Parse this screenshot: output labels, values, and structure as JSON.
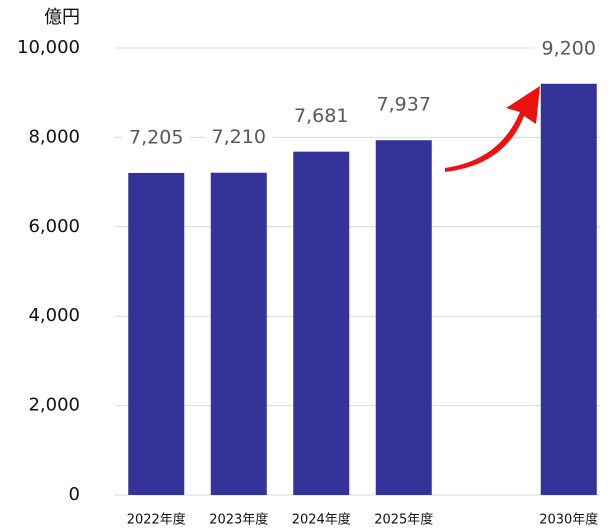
{
  "chart_data": {
    "type": "bar",
    "y_label": "億円",
    "categories": [
      "2022年度",
      "2023年度",
      "2024年度",
      "2025年度",
      null,
      "2030年度"
    ],
    "values": [
      7205,
      7210,
      7681,
      7937,
      null,
      9200
    ],
    "value_labels": [
      "7,205",
      "7,210",
      "7,681",
      "7,937",
      null,
      "9,200"
    ],
    "color": "#333399",
    "ylim": [
      0,
      10000
    ],
    "yticks": [
      0,
      {
        "value": 2000,
        "label": "2,000"
      },
      {
        "value": 4000,
        "label": "4,000"
      },
      {
        "value": 6000,
        "label": "6,000"
      },
      {
        "value": 8000,
        "label": "8,000"
      },
      {
        "value": 10000,
        "label": "10,000"
      }
    ],
    "grid": true
  }
}
